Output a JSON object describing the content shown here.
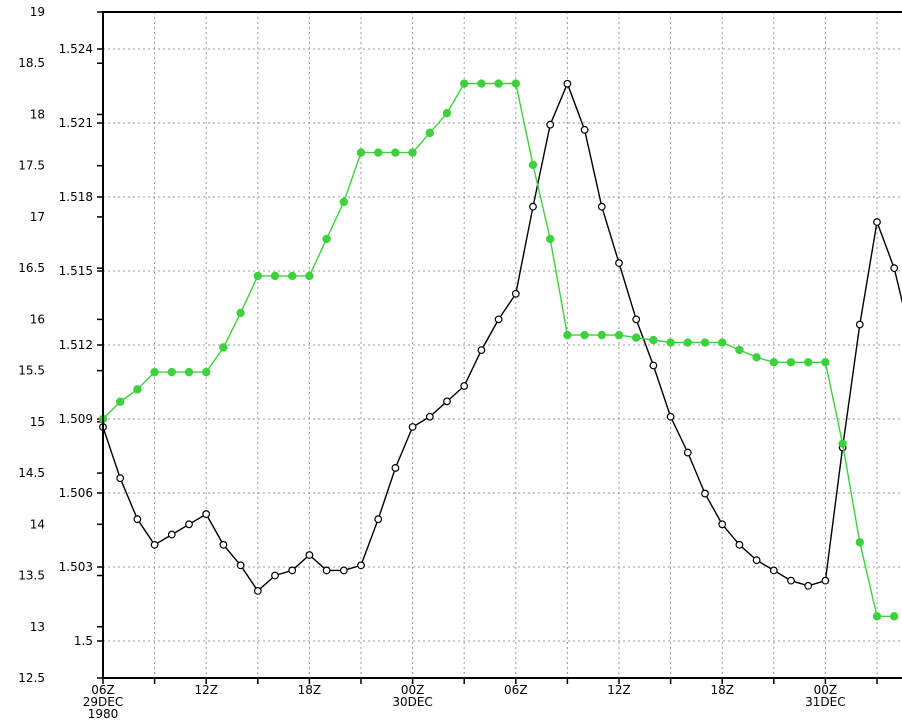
{
  "chart_data": {
    "type": "line",
    "x_labels": [
      {
        "hour": 0,
        "text": [
          "06Z",
          "29DEC",
          "1980"
        ]
      },
      {
        "hour": 6,
        "text": [
          "12Z"
        ]
      },
      {
        "hour": 12,
        "text": [
          "18Z"
        ]
      },
      {
        "hour": 18,
        "text": [
          "00Z",
          "30DEC"
        ]
      },
      {
        "hour": 24,
        "text": [
          "06Z"
        ]
      },
      {
        "hour": 30,
        "text": [
          "12Z"
        ]
      },
      {
        "hour": 36,
        "text": [
          "18Z"
        ]
      },
      {
        "hour": 42,
        "text": [
          "00Z",
          "31DEC"
        ]
      }
    ],
    "xlim": [
      0,
      46.5
    ],
    "left_axis": {
      "ylim": [
        12.5,
        19
      ],
      "ticks": [
        "12.5",
        "13",
        "13.5",
        "14",
        "14.5",
        "15",
        "15.5",
        "16",
        "16.5",
        "17",
        "17.5",
        "18",
        "18.5",
        "19"
      ]
    },
    "inner_axis": {
      "ylim": [
        1.4985,
        1.5255
      ],
      "ticks": [
        "1.5",
        "1.503",
        "1.506",
        "1.509",
        "1.512",
        "1.515",
        "1.518",
        "1.521",
        "1.524"
      ]
    },
    "series": [
      {
        "axis": "left",
        "color": "#000000",
        "marker": "open-circle",
        "values": [
          14.95,
          14.45,
          14.05,
          13.8,
          13.9,
          14.0,
          14.1,
          13.8,
          13.6,
          13.35,
          13.5,
          13.55,
          13.7,
          13.55,
          13.55,
          13.6,
          14.05,
          14.55,
          14.95,
          15.05,
          15.2,
          15.35,
          15.7,
          16.0,
          16.25,
          17.1,
          17.9,
          18.3,
          17.85,
          17.1,
          16.55,
          16.0,
          15.55,
          15.05,
          14.7,
          14.3,
          14.0,
          13.8,
          13.65,
          13.55,
          13.45,
          13.4,
          13.45,
          14.75,
          15.95,
          16.95,
          16.5,
          15.8
        ]
      },
      {
        "axis": "inner",
        "color": "#3dd13d",
        "marker": "filled-circle",
        "values": [
          1.509,
          1.5097,
          1.5102,
          1.5109,
          1.5109,
          1.5109,
          1.5109,
          1.5119,
          1.5133,
          1.5148,
          1.5148,
          1.5148,
          1.5148,
          1.5163,
          1.5178,
          1.5198,
          1.5198,
          1.5198,
          1.5198,
          1.5206,
          1.5214,
          1.5226,
          1.5226,
          1.5226,
          1.5226,
          1.5193,
          1.5163,
          1.5124,
          1.5124,
          1.5124,
          1.5124,
          1.5123,
          1.5122,
          1.5121,
          1.5121,
          1.5121,
          1.5121,
          1.5118,
          1.5115,
          1.5113,
          1.5113,
          1.5113,
          1.5113,
          1.508,
          1.504,
          1.501,
          1.501
        ]
      }
    ],
    "grid": true
  }
}
